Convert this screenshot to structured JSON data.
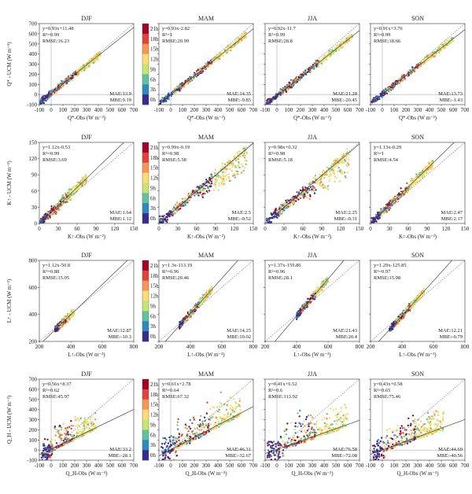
{
  "colorbar": {
    "labels": [
      "21h",
      "18h",
      "15h",
      "12h",
      "9h",
      "6h",
      "3h",
      "0h"
    ],
    "colors": [
      "#a50026",
      "#e5413a",
      "#f99451",
      "#fddc71",
      "#c6e66e",
      "#5fc49e",
      "#2a8cbe",
      "#3b2a8e"
    ]
  },
  "seasons": [
    "DJF",
    "MAM",
    "JJA",
    "SON"
  ],
  "chart_data": [
    {
      "type": "scatter",
      "row": 0,
      "ylabel": "Q* - UCM (W m⁻²)",
      "xlabel": "Q*-Obs (W m⁻²)",
      "xlim": [
        -100,
        700
      ],
      "ylim": [
        -100,
        700
      ],
      "xticks": [
        -100,
        0,
        100,
        200,
        300,
        400,
        500,
        600,
        700
      ],
      "yticks": [
        -100,
        0,
        100,
        200,
        300,
        400,
        500,
        600,
        700
      ],
      "panels": [
        {
          "season": "DJF",
          "fit": {
            "slope": 0.93,
            "intercept": 11.48
          },
          "equation": "y=0.93x+11.48",
          "r2": "R²=0.99",
          "rmse": "RMSE:16.23",
          "mae": "MAE:13.9",
          "mbe": "MBE:9.19",
          "range": [
            -90,
            420
          ],
          "spread": 0.04,
          "flare": 0
        },
        {
          "season": "MAM",
          "fit": {
            "slope": 0.93,
            "intercept": -2.82
          },
          "equation": "y=0.93x-2.82",
          "r2": "R²=1",
          "rmse": "RMSE:20.99",
          "mae": "MAE:14.35",
          "mbe": "MBE:-9.85",
          "range": [
            -90,
            640
          ],
          "spread": 0.035,
          "flare": 0
        },
        {
          "season": "JJA",
          "fit": {
            "slope": 0.92,
            "intercept": -11.7
          },
          "equation": "y=0.92x-11.7",
          "r2": "R²=0.99",
          "rmse": "RMSE:28.8",
          "mae": "MAE:21.28",
          "mbe": "MBE:-20.45",
          "range": [
            -90,
            640
          ],
          "spread": 0.04,
          "flare": 0
        },
        {
          "season": "SON",
          "fit": {
            "slope": 0.91,
            "intercept": 3.76
          },
          "equation": "y=0.91x+3.76",
          "r2": "R²=0.99",
          "rmse": "RMSE:18.66",
          "mae": "MAE:13.73",
          "mbe": "MBE:-1.43",
          "range": [
            -90,
            600
          ],
          "spread": 0.035,
          "flare": 0
        }
      ]
    },
    {
      "type": "scatter",
      "row": 1,
      "ylabel": "K↑ - UCM (W m⁻²)",
      "xlabel": "K↑-Obs (W m⁻²)",
      "xlim": [
        0,
        150
      ],
      "ylim": [
        0,
        150
      ],
      "xticks": [
        0,
        30,
        60,
        90,
        120,
        150
      ],
      "yticks": [
        0,
        30,
        60,
        90,
        120,
        150
      ],
      "panels": [
        {
          "season": "DJF",
          "fit": {
            "slope": 1.12,
            "intercept": -0.53
          },
          "equation": "y=1.12x-0.53",
          "r2": "R²=0.99",
          "rmse": "RMSE:3.69",
          "mae": "MAE:1.64",
          "mbe": "MBE:1.12",
          "range": [
            0,
            75
          ],
          "spread": 0.06,
          "flare": 0
        },
        {
          "season": "MAM",
          "fit": {
            "slope": 0.99,
            "intercept": -0.19
          },
          "equation": "y=0.99x-0.19",
          "r2": "R²=0.98",
          "rmse": "RMSE:5.58",
          "mae": "MAE:2.5",
          "mbe": "MBE:-0.52",
          "range": [
            0,
            140
          ],
          "spread": 0.06,
          "flare": 0.25
        },
        {
          "season": "JJA",
          "fit": {
            "slope": 0.98,
            "intercept": 0.32
          },
          "equation": "y=0.98x+0.32",
          "r2": "R²=0.98",
          "rmse": "RMSE:5.18",
          "mae": "MAE:2.25",
          "mbe": "MBE:-0.31",
          "range": [
            0,
            135
          ],
          "spread": 0.06,
          "flare": 0.25
        },
        {
          "season": "SON",
          "fit": {
            "slope": 1.13,
            "intercept": -0.29
          },
          "equation": "y=1.13x-0.29",
          "r2": "R²=1",
          "rmse": "RMSE:4.54",
          "mae": "MAE:2.47",
          "mbe": "MBE:2.17",
          "range": [
            0,
            100
          ],
          "spread": 0.05,
          "flare": 0
        }
      ]
    },
    {
      "type": "scatter",
      "row": 2,
      "ylabel": "L↑ - UCM (W m⁻²)",
      "xlabel": "L↑-Obs (W m⁻²)",
      "xlim": [
        200,
        800
      ],
      "ylim": [
        200,
        800
      ],
      "xticks": [
        200,
        400,
        600,
        800
      ],
      "yticks": [
        200,
        400,
        600,
        800
      ],
      "panels": [
        {
          "season": "DJF",
          "fit": {
            "slope": 1.12,
            "intercept": -50.8
          },
          "equation": "y=1.12x-50.8",
          "r2": "R²=0.88",
          "rmse": "RMSE:15.05",
          "mae": "MAE:12.87",
          "mbe": "MBE:-10.3",
          "range": [
            300,
            420
          ],
          "spread": 0.04,
          "flare": 0
        },
        {
          "season": "MAM",
          "fit": {
            "slope": 1.3,
            "intercept": -113.19
          },
          "equation": "y=1.3x-113.19",
          "r2": "R²=0.96",
          "rmse": "RMSE:20.46",
          "mae": "MAE:14.25",
          "mbe": "MBE:10.02",
          "range": [
            330,
            540
          ],
          "spread": 0.04,
          "flare": 0
        },
        {
          "season": "JJA",
          "fit": {
            "slope": 1.37,
            "intercept": -159.86
          },
          "equation": "y=1.37x-159.86",
          "r2": "R²=0.96",
          "rmse": "RMSE:28.1",
          "mae": "MAE:21.43",
          "mbe": "MBE:20.4",
          "range": [
            400,
            600
          ],
          "spread": 0.04,
          "flare": 0
        },
        {
          "season": "SON",
          "fit": {
            "slope": 1.29,
            "intercept": -125.85
          },
          "equation": "y=1.29x-125.85",
          "r2": "R²=0.97",
          "rmse": "RMSE:15.98",
          "mae": "MAE:12.21",
          "mbe": "MBE:-0.79",
          "range": [
            320,
            540
          ],
          "spread": 0.04,
          "flare": 0
        }
      ]
    },
    {
      "type": "scatter",
      "row": 3,
      "ylabel": "Q_H - UCM (W m⁻²)",
      "xlabel": "Q_H-Obs (W m⁻²)",
      "xlim": [
        -100,
        700
      ],
      "ylim": [
        -100,
        700
      ],
      "xticks": [
        -100,
        0,
        100,
        200,
        300,
        400,
        500,
        600,
        700
      ],
      "yticks": [
        -100,
        0,
        100,
        200,
        300,
        400,
        500,
        600,
        700
      ],
      "panels": [
        {
          "season": "DJF",
          "fit": {
            "slope": 0.56,
            "intercept": 8.37
          },
          "equation": "y=0.56x+8.37",
          "r2": "R²=0.62",
          "rmse": "RMSE:45.97",
          "mae": "MAE:33.2",
          "mbe": "MBE:-28.1",
          "range": [
            -80,
            380
          ],
          "spread": 0.12,
          "flare": 0
        },
        {
          "season": "MAM",
          "fit": {
            "slope": 0.61,
            "intercept": 2.78
          },
          "equation": "y=0.61x+2.78",
          "r2": "R²=0.64",
          "rmse": "RMSE:67.32",
          "mae": "MAE:46.31",
          "mbe": "MBE:-32.67",
          "range": [
            -80,
            600
          ],
          "spread": 0.16,
          "flare": 0
        },
        {
          "season": "JJA",
          "fit": {
            "slope": 0.41,
            "intercept": 6.52
          },
          "equation": "y=0.41x+6.52",
          "r2": "R²=0.6",
          "rmse": "RMSE:113.92",
          "mae": "MAE:76.58",
          "mbe": "MBE:-72.08",
          "range": [
            -80,
            600
          ],
          "spread": 0.16,
          "flare": 0
        },
        {
          "season": "SON",
          "fit": {
            "slope": 0.43,
            "intercept": 0.58
          },
          "equation": "y=0.43x+0.58",
          "r2": "R²=0.65",
          "rmse": "RMSE:75.46",
          "mae": "MAE:44.69",
          "mbe": "MBE:-40.56",
          "range": [
            -80,
            520
          ],
          "spread": 0.14,
          "flare": 0
        }
      ]
    }
  ]
}
